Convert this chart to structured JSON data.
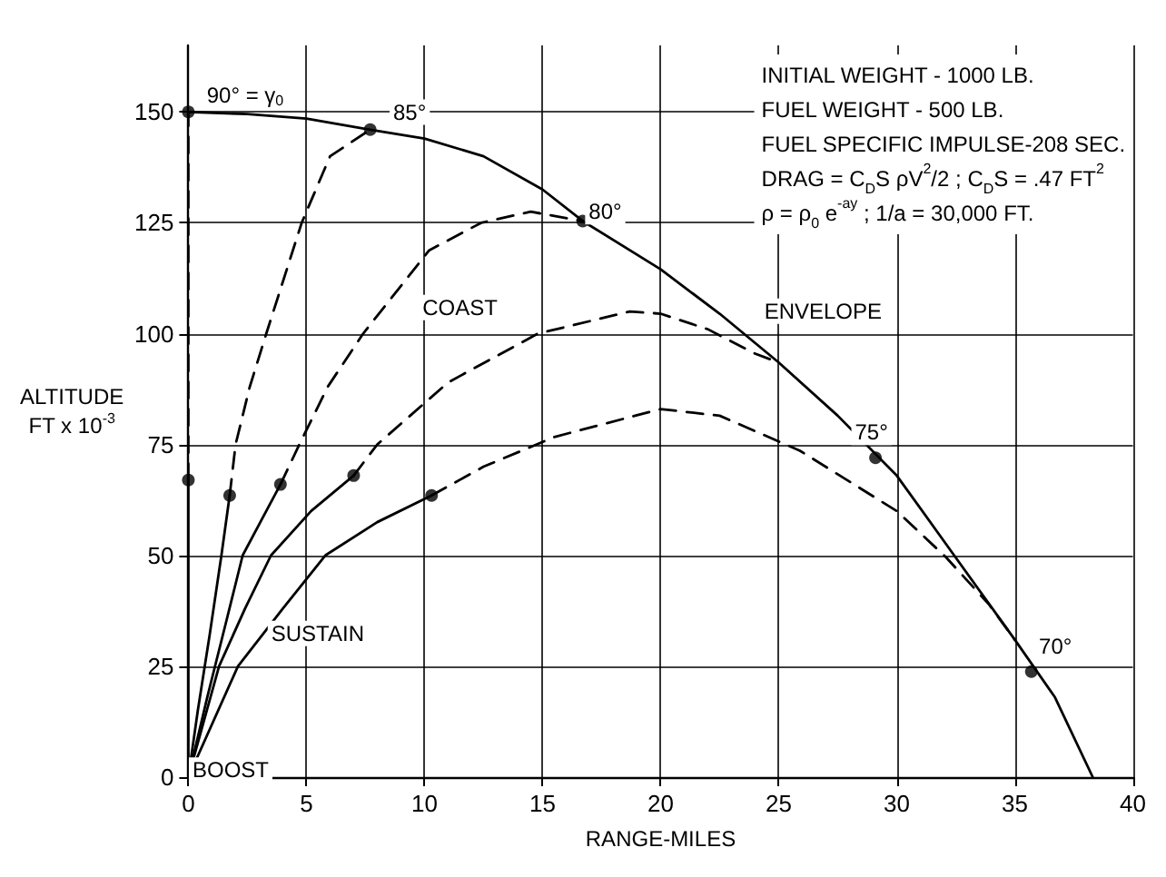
{
  "chart_data": {
    "type": "line",
    "xlabel": "RANGE-MILES",
    "ylabel": "ALTITUDE\nFT x 10$^{-3}$",
    "xlim": [
      0,
      40
    ],
    "xticks": [
      0,
      5,
      10,
      15,
      20,
      25,
      30,
      35,
      40
    ],
    "ylim": [
      0,
      165
    ],
    "yticks": [
      0,
      25,
      50,
      75,
      100,
      125,
      150
    ],
    "grid": true,
    "marker": "none",
    "series": [
      {
        "color": "#000000",
        "line_style": "solid",
        "x": [
          0,
          2.5,
          5,
          7.7,
          10,
          12.5,
          15,
          16.7,
          20,
          22.5,
          25,
          27.5,
          30,
          32.5,
          35,
          36.7,
          38.3
        ],
        "values": [
          150,
          149.5,
          148.5,
          146,
          144,
          140,
          132.5,
          125.4,
          114.5,
          104.5,
          93.5,
          81.5,
          68,
          49.5,
          31,
          18,
          0
        ]
      },
      {
        "color": "#000000",
        "line_style": "solid",
        "x": [
          0,
          0
        ],
        "values": [
          0,
          67
        ]
      },
      {
        "color": "#000000",
        "line_style": "solid",
        "x": [
          0,
          0.4,
          0.9,
          1.4,
          1.75
        ],
        "values": [
          0,
          15,
          32,
          50,
          63.5
        ]
      },
      {
        "color": "#000000",
        "line_style": "solid",
        "x": [
          0,
          0.8,
          1.6,
          2.3,
          3.1,
          3.9
        ],
        "values": [
          0,
          18,
          35,
          50,
          58,
          66
        ]
      },
      {
        "color": "#000000",
        "line_style": "solid",
        "x": [
          0,
          1.3,
          2.4,
          3.5,
          5.2,
          7
        ],
        "values": [
          0,
          25,
          38,
          50,
          60,
          68
        ]
      },
      {
        "color": "#000000",
        "line_style": "solid",
        "x": [
          0,
          2.1,
          4,
          5.8,
          8,
          10.3
        ],
        "values": [
          0,
          25,
          38,
          50,
          57.5,
          63.5
        ]
      },
      {
        "color": "#000000",
        "line_style": "dashed",
        "x": [
          0,
          0
        ],
        "values": [
          67,
          150
        ]
      },
      {
        "color": "#000000",
        "line_style": "dashed",
        "x": [
          1.75,
          2,
          2.6,
          3.3,
          4.8,
          6,
          7.7
        ],
        "values": [
          63.5,
          75,
          88,
          100,
          125,
          140,
          146
        ]
      },
      {
        "color": "#000000",
        "line_style": "dashed",
        "x": [
          3.9,
          4.7,
          5.9,
          7.4,
          10.2,
          12.4,
          14.5,
          16.7
        ],
        "values": [
          66,
          75,
          88,
          100,
          118.8,
          125,
          127.5,
          125.4
        ]
      },
      {
        "color": "#000000",
        "line_style": "dashed",
        "x": [
          7,
          8,
          11,
          14.8,
          18.7,
          20,
          22,
          24,
          25
        ],
        "values": [
          68,
          75,
          89,
          100,
          105,
          104.5,
          101,
          95.5,
          93.5
        ]
      },
      {
        "color": "#000000",
        "line_style": "dashed",
        "x": [
          10.3,
          12.5,
          15.5,
          20,
          22.5,
          25.9,
          30,
          32.1,
          33.9,
          35
        ],
        "values": [
          63.5,
          70,
          76.7,
          83,
          81.5,
          73.6,
          60,
          49.5,
          39,
          31
        ]
      },
      {
        "type": "scatter",
        "marker": "circle",
        "color": "#000000",
        "x": [
          0,
          7.7,
          16.7,
          29.1,
          35.7,
          0,
          1.75,
          3.9,
          7,
          10.3
        ],
        "values": [
          150,
          146,
          125.4,
          72,
          23.8,
          67,
          63.5,
          66,
          68,
          63.5
        ]
      }
    ],
    "annotations": [
      "90° = γ$_{0}$",
      "85°",
      "80°",
      "75°",
      "70°",
      "COAST",
      "ENVELOPE",
      "SUSTAIN",
      "BOOST",
      "INITIAL WEIGHT - 1000 LB.",
      "FUEL WEIGHT - 500 LB.",
      "FUEL SPECIFIC IMPULSE-208 SEC.",
      "DRAG = C$_{D}$S ρV$^{2}$/2 ; C$_{D}$S = .47 FT$^{2}$",
      "ρ = ρ$_{0}$ e$^{-ay}$ ; 1/a = 30,000 FT."
    ]
  }
}
